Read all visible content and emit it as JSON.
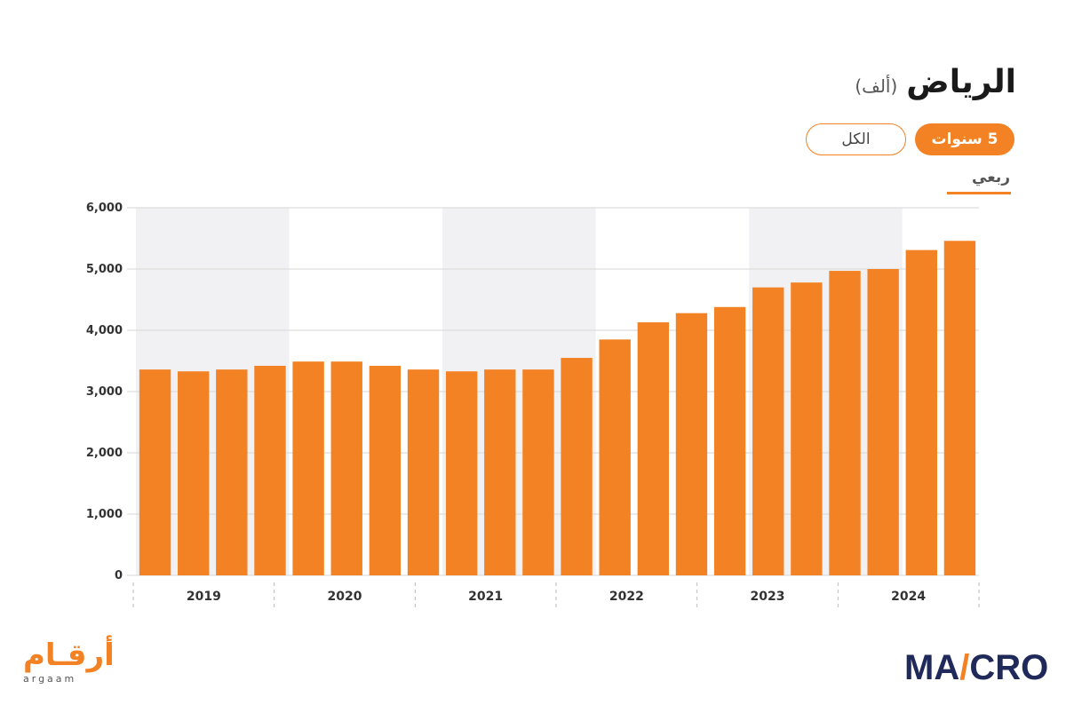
{
  "header": {
    "title": "الرياض",
    "unit": "(ألف)"
  },
  "range_buttons": {
    "active": "5 سنوات",
    "all": "الكل"
  },
  "frequency_tab": "ربعي",
  "logos": {
    "argaam_ar": "أرقـام",
    "argaam_en": "argaam",
    "macro_prefix": "MA",
    "macro_accent": "/",
    "macro_suffix": "CRO"
  },
  "colors": {
    "bar": "#f28224",
    "band": "#f1f1f3",
    "grid": "#d6d6d6",
    "brand_navy": "#1f2a5a"
  },
  "chart_data": {
    "type": "bar",
    "ylim": [
      0,
      6000
    ],
    "yticks": [
      "0",
      "1,000",
      "2,000",
      "3,000",
      "4,000",
      "5,000",
      "6,000"
    ],
    "ytick_values": [
      0,
      1000,
      2000,
      3000,
      4000,
      5000,
      6000
    ],
    "years": [
      "2019",
      "2020",
      "2021",
      "2022",
      "2023",
      "2024"
    ],
    "values": [
      3360,
      3330,
      3360,
      3420,
      3490,
      3490,
      3420,
      3360,
      3330,
      3360,
      3360,
      3550,
      3850,
      4130,
      4280,
      4380,
      4700,
      4780,
      4970,
      5000,
      5310,
      5460
    ],
    "grid": true,
    "shaded_bands": [
      "2019",
      "2021",
      "2023"
    ]
  }
}
